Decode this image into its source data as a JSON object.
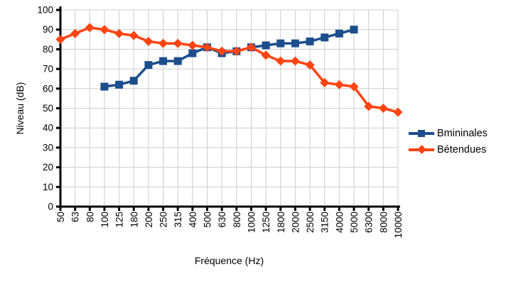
{
  "chart_data": {
    "type": "line",
    "title": "",
    "xlabel": "Fréquence (Hz)",
    "ylabel": "Niveau (dB)",
    "ylim": [
      0,
      100
    ],
    "ytick_step": 10,
    "grid": true,
    "legend_position": "right",
    "background_color": "#ffffff",
    "grid_color": "#cccccc",
    "axis_color": "#000000",
    "categories": [
      "50",
      "63",
      "80",
      "100",
      "125",
      "180",
      "200",
      "250",
      "315",
      "400",
      "500",
      "630",
      "800",
      "1000",
      "1250",
      "1800",
      "2000",
      "2500",
      "3150",
      "4000",
      "5000",
      "6300",
      "8000",
      "10000"
    ],
    "series": [
      {
        "name": "Bmininales",
        "color": "#1c4e8c",
        "marker": "square",
        "values": [
          null,
          null,
          null,
          61,
          62,
          64,
          72,
          74,
          74,
          78,
          81,
          78,
          79,
          81,
          82,
          83,
          83,
          84,
          86,
          88,
          90,
          null,
          null,
          null
        ]
      },
      {
        "name": "Bétendues",
        "color": "#ff4412",
        "marker": "diamond",
        "values": [
          85,
          88,
          91,
          90,
          88,
          87,
          84,
          83,
          83,
          82,
          81,
          79,
          79,
          81,
          77,
          74,
          74,
          72,
          63,
          62,
          61,
          51,
          50,
          48
        ]
      }
    ]
  }
}
